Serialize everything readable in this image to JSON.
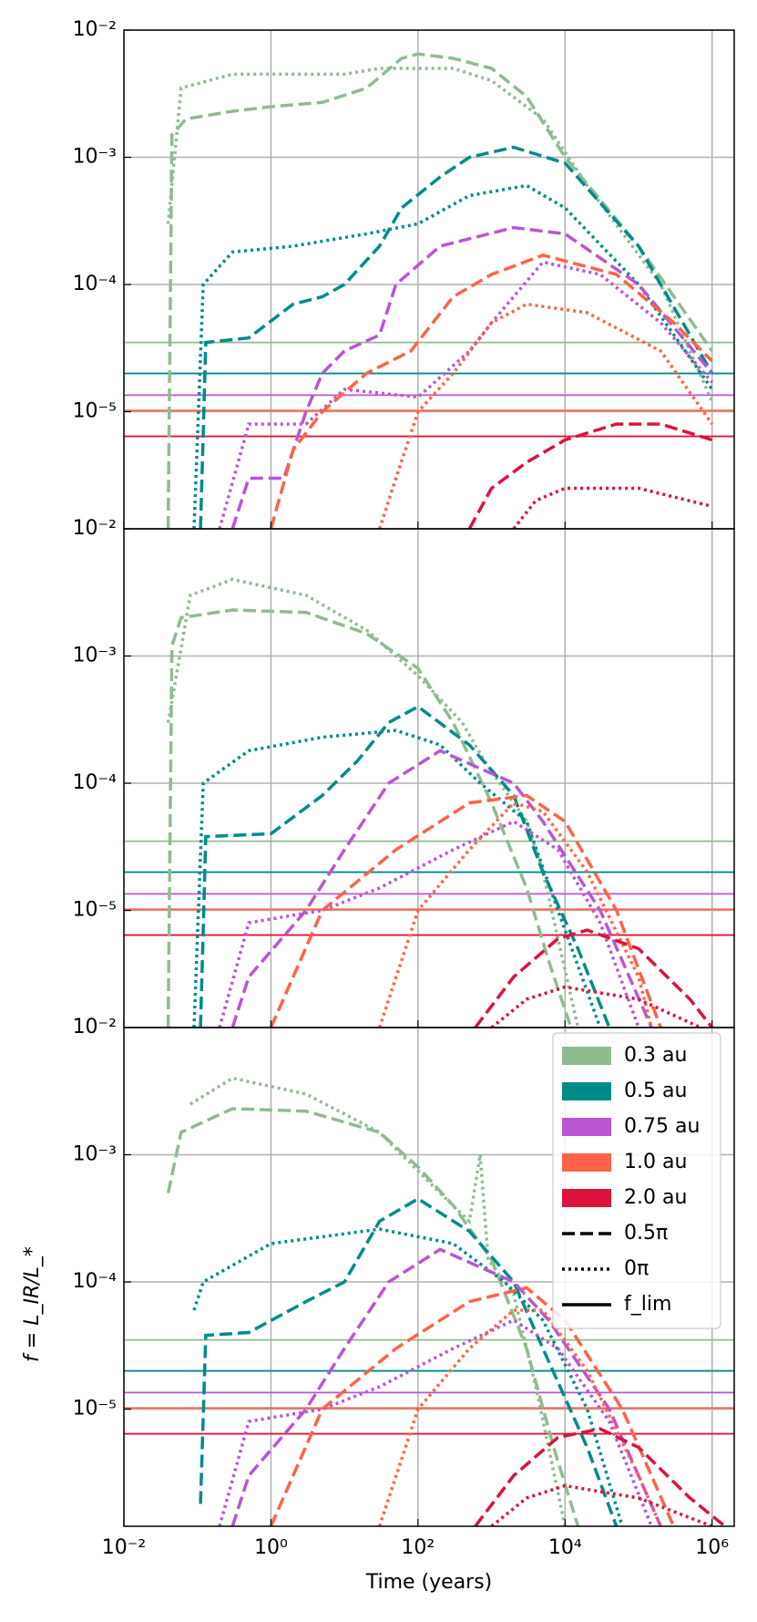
{
  "chart_data": [
    {
      "type": "line",
      "xscale": "log",
      "yscale": "log",
      "grid": true,
      "show_xticklabels": false,
      "xlim": [
        0.01,
        2000000
      ],
      "ylim": [
        1.2e-06,
        0.01
      ],
      "xticks": [
        0.01,
        1,
        100,
        10000,
        1000000
      ],
      "yticks": [
        {
          "value": 1e-05,
          "label": "10⁻⁵"
        },
        {
          "value": 0.0001,
          "label": "10⁻⁴"
        },
        {
          "value": 0.001,
          "label": "10⁻³"
        },
        {
          "value": 0.01,
          "label": "10⁻²"
        }
      ],
      "hlines": [
        {
          "color": "#8fbc8f",
          "value": 3.5e-05
        },
        {
          "color": "#008b8b",
          "value": 2e-05
        },
        {
          "color": "#ba55d3",
          "value": 1.35e-05
        },
        {
          "color": "#ff6347",
          "value": 1.02e-05
        },
        {
          "color": "#dc143c",
          "value": 6.4e-06
        }
      ],
      "series": [
        {
          "color": "#8fbc8f",
          "linestyle": "dashed",
          "x": [
            0.04,
            0.045,
            0.07,
            0.3,
            1,
            5,
            20,
            60,
            100,
            300,
            1000,
            3000,
            10000,
            100000,
            1000000
          ],
          "values": [
            1.2e-06,
            0.0015,
            0.002,
            0.0023,
            0.0025,
            0.0027,
            0.0035,
            0.006,
            0.0065,
            0.006,
            0.005,
            0.003,
            0.001,
            0.0002,
            3e-05
          ]
        },
        {
          "color": "#8fbc8f",
          "linestyle": "dotted",
          "x": [
            0.04,
            0.06,
            0.3,
            10,
            30,
            300,
            1000,
            5000,
            20000,
            200000,
            1000000
          ],
          "values": [
            0.0003,
            0.0035,
            0.0045,
            0.0045,
            0.005,
            0.005,
            0.004,
            0.002,
            0.0006,
            0.0001,
            1.2e-05
          ]
        },
        {
          "color": "#008b8b",
          "linestyle": "dashed",
          "x": [
            0.11,
            0.13,
            0.5,
            2,
            5,
            10,
            30,
            60,
            200,
            500,
            2000,
            10000,
            100000,
            1000000
          ],
          "values": [
            1.2e-06,
            3.5e-05,
            3.8e-05,
            7e-05,
            8e-05,
            0.0001,
            0.0002,
            0.0004,
            0.0007,
            0.001,
            0.0012,
            0.0009,
            0.0002,
            2e-05
          ]
        },
        {
          "color": "#008b8b",
          "linestyle": "dotted",
          "x": [
            0.09,
            0.12,
            0.3,
            2,
            20,
            100,
            500,
            3000,
            10000,
            100000,
            1000000
          ],
          "values": [
            1.2e-06,
            0.0001,
            0.00018,
            0.0002,
            0.00025,
            0.0003,
            0.0005,
            0.0006,
            0.0004,
            0.0001,
            1.5e-05
          ]
        },
        {
          "color": "#ba55d3",
          "linestyle": "dashed",
          "x": [
            0.3,
            0.5,
            1.5,
            3,
            5,
            10,
            30,
            50,
            200,
            2000,
            10000,
            100000,
            1000000
          ],
          "values": [
            1.2e-06,
            3e-06,
            3e-06,
            1e-05,
            2e-05,
            3e-05,
            4e-05,
            0.0001,
            0.0002,
            0.00028,
            0.00025,
            0.0001,
            2e-05
          ]
        },
        {
          "color": "#ba55d3",
          "linestyle": "dotted",
          "x": [
            0.2,
            0.5,
            3,
            10,
            100,
            500,
            1000,
            5000,
            30000,
            200000,
            1000000
          ],
          "values": [
            1.2e-06,
            8e-06,
            8e-06,
            1.5e-05,
            1.3e-05,
            3e-05,
            5e-05,
            0.00015,
            0.00012,
            5e-05,
            1.7e-05
          ]
        },
        {
          "color": "#ff6347",
          "linestyle": "dashed",
          "x": [
            1,
            2,
            5,
            20,
            80,
            300,
            1000,
            5000,
            50000,
            300000,
            1000000
          ],
          "values": [
            1.2e-06,
            5e-06,
            1e-05,
            2e-05,
            3e-05,
            8e-05,
            0.00012,
            0.00017,
            0.00012,
            5e-05,
            2.5e-05
          ]
        },
        {
          "color": "#ff6347",
          "linestyle": "dotted",
          "x": [
            30,
            50,
            100,
            300,
            1000,
            3000,
            20000,
            200000,
            1000000
          ],
          "values": [
            1.2e-06,
            3e-06,
            1e-05,
            2e-05,
            5e-05,
            7e-05,
            6e-05,
            3e-05,
            8e-06
          ]
        },
        {
          "color": "#dc143c",
          "linestyle": "dashed",
          "x": [
            500,
            1000,
            3000,
            10000,
            50000,
            200000,
            1000000
          ],
          "values": [
            1.2e-06,
            2.5e-06,
            4e-06,
            6e-06,
            8e-06,
            8e-06,
            6e-06
          ]
        },
        {
          "color": "#dc143c",
          "linestyle": "dotted",
          "x": [
            2000,
            4000,
            10000,
            100000,
            1000000
          ],
          "values": [
            1.2e-06,
            2e-06,
            2.5e-06,
            2.5e-06,
            1.8e-06
          ]
        }
      ]
    },
    {
      "type": "line",
      "xscale": "log",
      "yscale": "log",
      "grid": true,
      "show_xticklabels": false,
      "xlim": [
        0.01,
        2000000
      ],
      "ylim": [
        1.2e-06,
        0.01
      ],
      "xticks": [
        0.01,
        1,
        100,
        10000,
        1000000
      ],
      "yticks": [
        {
          "value": 1e-05,
          "label": "10⁻⁵"
        },
        {
          "value": 0.0001,
          "label": "10⁻⁴"
        },
        {
          "value": 0.001,
          "label": "10⁻³"
        },
        {
          "value": 0.01,
          "label": "10⁻²"
        }
      ],
      "hlines": [
        {
          "color": "#8fbc8f",
          "value": 3.5e-05
        },
        {
          "color": "#008b8b",
          "value": 2e-05
        },
        {
          "color": "#ba55d3",
          "value": 1.35e-05
        },
        {
          "color": "#ff6347",
          "value": 1.02e-05
        },
        {
          "color": "#dc143c",
          "value": 6.4e-06
        }
      ],
      "series": [
        {
          "color": "#8fbc8f",
          "linestyle": "dashed",
          "x": [
            0.04,
            0.045,
            0.06,
            0.3,
            3,
            20,
            100,
            300,
            1000,
            3000,
            6000,
            12000
          ],
          "values": [
            1.2e-06,
            0.0012,
            0.002,
            0.0023,
            0.0022,
            0.0015,
            0.0008,
            0.0003,
            7e-05,
            1.5e-05,
            4e-06,
            1.2e-06
          ]
        },
        {
          "color": "#8fbc8f",
          "linestyle": "dotted",
          "x": [
            0.04,
            0.08,
            0.3,
            3,
            20,
            100,
            400,
            800,
            3000,
            5000,
            15000
          ],
          "values": [
            0.0003,
            0.003,
            0.004,
            0.003,
            0.0016,
            0.0007,
            0.0003,
            0.00015,
            5e-05,
            2e-05,
            1.2e-06
          ]
        },
        {
          "color": "#008b8b",
          "linestyle": "dashed",
          "x": [
            0.11,
            0.13,
            1,
            5,
            15,
            40,
            100,
            500,
            2000,
            5000,
            15000,
            40000
          ],
          "values": [
            1.2e-06,
            3.8e-05,
            4e-05,
            8e-05,
            0.00015,
            0.0003,
            0.0004,
            0.0002,
            8e-05,
            2e-05,
            5e-06,
            1.2e-06
          ]
        },
        {
          "color": "#008b8b",
          "linestyle": "dotted",
          "x": [
            0.09,
            0.12,
            0.5,
            5,
            50,
            200,
            700,
            3000,
            8000,
            30000
          ],
          "values": [
            1.2e-06,
            0.0001,
            0.00018,
            0.00023,
            0.00026,
            0.0002,
            0.0001,
            5e-05,
            1e-05,
            1.2e-06
          ]
        },
        {
          "color": "#ba55d3",
          "linestyle": "dashed",
          "x": [
            0.3,
            0.5,
            3,
            10,
            40,
            200,
            2000,
            5000,
            30000,
            150000
          ],
          "values": [
            1.2e-06,
            3e-06,
            1e-05,
            3e-05,
            0.0001,
            0.00018,
            0.0001,
            5e-05,
            1e-05,
            1.2e-06
          ]
        },
        {
          "color": "#ba55d3",
          "linestyle": "dotted",
          "x": [
            0.2,
            0.5,
            5,
            30,
            300,
            2000,
            8000,
            30000,
            100000
          ],
          "values": [
            1.2e-06,
            8e-06,
            1e-05,
            1.5e-05,
            3e-05,
            5e-05,
            3e-05,
            8e-06,
            1.2e-06
          ]
        },
        {
          "color": "#ff6347",
          "linestyle": "dashed",
          "x": [
            1,
            5,
            50,
            500,
            3000,
            10000,
            50000,
            200000
          ],
          "values": [
            1.2e-06,
            1e-05,
            3e-05,
            7e-05,
            8e-05,
            5e-05,
            1e-05,
            1.2e-06
          ]
        },
        {
          "color": "#ff6347",
          "linestyle": "dotted",
          "x": [
            30,
            100,
            500,
            2000,
            5000,
            20000,
            100000,
            150000
          ],
          "values": [
            1.2e-06,
            1e-05,
            3e-05,
            7e-05,
            6e-05,
            2e-05,
            3e-06,
            1.2e-06
          ]
        },
        {
          "color": "#dc143c",
          "linestyle": "dashed",
          "x": [
            600,
            2000,
            8000,
            20000,
            100000,
            500000,
            1000000
          ],
          "values": [
            1.2e-06,
            3e-06,
            6e-06,
            7e-06,
            5e-06,
            2e-06,
            1.2e-06
          ]
        },
        {
          "color": "#dc143c",
          "linestyle": "dotted",
          "x": [
            1000,
            3000,
            10000,
            100000,
            700000
          ],
          "values": [
            1.2e-06,
            2e-06,
            2.5e-06,
            2e-06,
            1.2e-06
          ]
        }
      ]
    },
    {
      "type": "line",
      "xscale": "log",
      "yscale": "log",
      "grid": true,
      "show_xticklabels": true,
      "xlabel": "Time (years)",
      "ylabel": "f = L_IR/L_*",
      "xlim": [
        0.01,
        2000000
      ],
      "ylim": [
        1.2e-06,
        0.01
      ],
      "xticks": [
        {
          "value": 0.01,
          "label": "10⁻²"
        },
        {
          "value": 1,
          "label": "10⁰"
        },
        {
          "value": 100,
          "label": "10²"
        },
        {
          "value": 10000,
          "label": "10⁴"
        },
        {
          "value": 1000000,
          "label": "10⁶"
        }
      ],
      "yticks": [
        {
          "value": 1e-05,
          "label": "10⁻⁵"
        },
        {
          "value": 0.0001,
          "label": "10⁻⁴"
        },
        {
          "value": 0.001,
          "label": "10⁻³"
        },
        {
          "value": 0.01,
          "label": "10⁻²"
        }
      ],
      "hlines": [
        {
          "color": "#8fbc8f",
          "value": 3.5e-05
        },
        {
          "color": "#008b8b",
          "value": 2e-05
        },
        {
          "color": "#ba55d3",
          "value": 1.35e-05
        },
        {
          "color": "#ff6347",
          "value": 1.02e-05
        },
        {
          "color": "#dc143c",
          "value": 6.4e-06
        }
      ],
      "series": [
        {
          "color": "#8fbc8f",
          "linestyle": "dashed",
          "x": [
            0.04,
            0.06,
            0.3,
            3,
            30,
            100,
            300,
            1000,
            3000,
            7000,
            15000
          ],
          "values": [
            0.0005,
            0.0015,
            0.0023,
            0.0022,
            0.0015,
            0.0008,
            0.0004,
            0.00015,
            3e-05,
            5e-06,
            1.2e-06
          ]
        },
        {
          "color": "#8fbc8f",
          "linestyle": "dotted",
          "x": [
            0.08,
            0.3,
            3,
            30,
            200,
            500,
            700,
            900,
            2000,
            4000,
            10000
          ],
          "values": [
            0.0025,
            0.004,
            0.003,
            0.0015,
            0.0005,
            0.0003,
            0.001,
            0.00015,
            8e-05,
            1.5e-05,
            1.2e-06
          ]
        },
        {
          "color": "#008b8b",
          "linestyle": "dashed",
          "x": [
            0.11,
            0.13,
            0.5,
            3,
            10,
            30,
            100,
            500,
            2000,
            5000,
            20000,
            50000
          ],
          "values": [
            1.8e-06,
            3.8e-05,
            4e-05,
            7e-05,
            0.0001,
            0.0003,
            0.00045,
            0.00025,
            0.0001,
            3e-05,
            5e-06,
            1.2e-06
          ]
        },
        {
          "color": "#008b8b",
          "linestyle": "dotted",
          "x": [
            0.09,
            0.12,
            1,
            30,
            300,
            1500,
            5000,
            20000,
            60000
          ],
          "values": [
            6e-05,
            0.0001,
            0.0002,
            0.00026,
            0.0002,
            0.0001,
            5e-05,
            1e-05,
            1.2e-06
          ]
        },
        {
          "color": "#ba55d3",
          "linestyle": "dashed",
          "x": [
            0.3,
            0.5,
            3,
            10,
            40,
            200,
            2000,
            6000,
            40000,
            200000
          ],
          "values": [
            1.2e-06,
            3e-06,
            1e-05,
            3e-05,
            0.0001,
            0.00018,
            0.0001,
            5e-05,
            1e-05,
            1.2e-06
          ]
        },
        {
          "color": "#ba55d3",
          "linestyle": "dotted",
          "x": [
            0.2,
            0.5,
            5,
            30,
            300,
            2000,
            8000,
            40000,
            150000
          ],
          "values": [
            1.2e-06,
            8e-06,
            1e-05,
            1.5e-05,
            3e-05,
            5e-05,
            3e-05,
            8e-06,
            1.2e-06
          ]
        },
        {
          "color": "#ff6347",
          "linestyle": "dashed",
          "x": [
            1,
            5,
            50,
            500,
            3000,
            10000,
            60000,
            300000
          ],
          "values": [
            1.2e-06,
            1e-05,
            3e-05,
            7e-05,
            9e-05,
            5e-05,
            1e-05,
            1.2e-06
          ]
        },
        {
          "color": "#ff6347",
          "linestyle": "dotted",
          "x": [
            30,
            100,
            500,
            2000,
            5000,
            20000,
            100000,
            200000
          ],
          "values": [
            1.2e-06,
            1e-05,
            3e-05,
            6e-05,
            6e-05,
            2e-05,
            3e-06,
            1.2e-06
          ]
        },
        {
          "color": "#dc143c",
          "linestyle": "dashed",
          "x": [
            600,
            2000,
            8000,
            30000,
            100000,
            500000,
            1500000
          ],
          "values": [
            1.2e-06,
            3e-06,
            6e-06,
            7e-06,
            5e-06,
            2e-06,
            1.2e-06
          ]
        },
        {
          "color": "#dc143c",
          "linestyle": "dotted",
          "x": [
            1000,
            3000,
            10000,
            100000,
            1000000
          ],
          "values": [
            1.2e-06,
            2e-06,
            2.5e-06,
            2e-06,
            1.2e-06
          ]
        }
      ],
      "legend": {
        "loc": "upper right",
        "entries": [
          {
            "label": "0.3 au",
            "color": "#8fbc8f"
          },
          {
            "label": "0.5 au",
            "color": "#008b8b"
          },
          {
            "label": "0.75 au",
            "color": "#ba55d3"
          },
          {
            "label": "1.0 au",
            "color": "#ff6347"
          },
          {
            "label": "2.0 au",
            "color": "#dc143c"
          },
          {
            "label": "0.5π",
            "linestyle": "dashed"
          },
          {
            "label": "0π",
            "linestyle": "dotted"
          },
          {
            "label": "f_lim",
            "linestyle": "solid"
          }
        ]
      }
    }
  ]
}
